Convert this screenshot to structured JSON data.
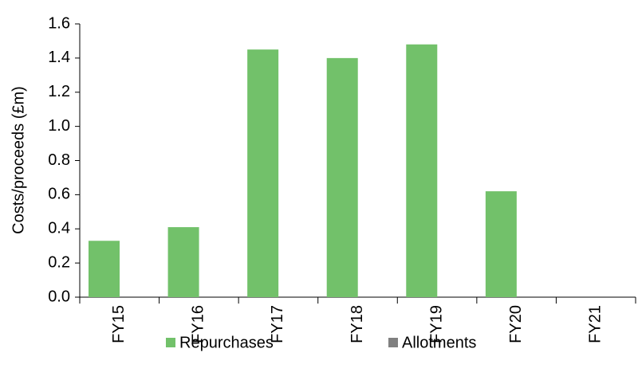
{
  "chart_data": {
    "type": "bar",
    "y_label": "Costs/proceeds (£m)",
    "categories": [
      "FY15",
      "FY16",
      "FY17",
      "FY18",
      "FY19",
      "FY20",
      "FY21"
    ],
    "series": [
      {
        "name": "Repurchases",
        "color": "#72c16a",
        "values": [
          0.33,
          0.41,
          1.45,
          1.4,
          1.48,
          0.62,
          0
        ]
      },
      {
        "name": "Allotments",
        "color": "#808080",
        "values": [
          0,
          0,
          0,
          0,
          0,
          0,
          0
        ]
      }
    ],
    "ylim": [
      0,
      1.6
    ],
    "yticks": [
      {
        "value": 0,
        "label": "0.0"
      },
      0.2,
      0.4,
      0.6,
      0.8,
      {
        "value": 1,
        "label": "1.0"
      },
      1.2,
      1.4,
      1.6
    ],
    "legend": "bottom"
  }
}
